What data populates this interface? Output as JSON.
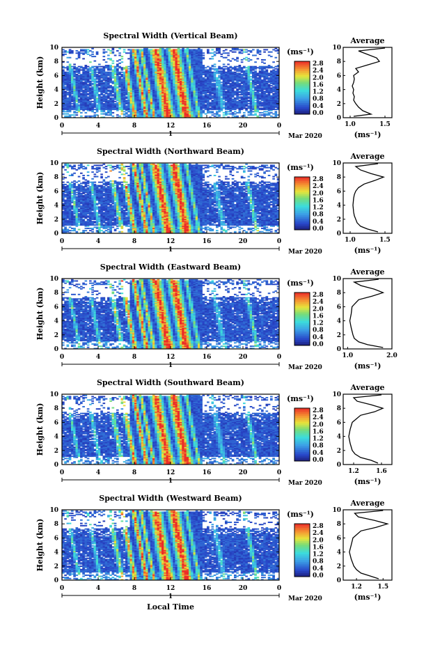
{
  "chart_data": [
    {
      "type": "heatmap",
      "title": "Spectral Width (Vertical Beam)",
      "ylabel": "Height (km)",
      "y_ticks": [
        "0",
        "2",
        "4",
        "6",
        "8",
        "10"
      ],
      "x_ticks": [
        "0",
        "4",
        "8",
        "12",
        "16",
        "20",
        "0"
      ],
      "date_center": "1",
      "date_suffix": "Mar 2020",
      "unit": "(ms⁻¹)",
      "cbar_ticks": [
        "0.0",
        "0.4",
        "0.8",
        "1.2",
        "1.6",
        "2.0",
        "2.4",
        "2.8"
      ],
      "xlim": [
        0,
        24
      ],
      "ylim": [
        0,
        10
      ],
      "clim": [
        0,
        2.8
      ],
      "avg": {
        "title": "Average",
        "xlabel": "(ms⁻¹)",
        "x_ticks": [
          "1.0",
          "1.5"
        ],
        "xlim": [
          0.9,
          1.6
        ],
        "profile": [
          [
            1.05,
            0.2
          ],
          [
            1.3,
            0.5
          ],
          [
            1.18,
            1
          ],
          [
            1.12,
            1.5
          ],
          [
            1.08,
            2
          ],
          [
            1.05,
            2.5
          ],
          [
            1.06,
            3
          ],
          [
            1.04,
            3.5
          ],
          [
            1.05,
            4
          ],
          [
            1.03,
            4.5
          ],
          [
            1.05,
            5
          ],
          [
            1.06,
            5.5
          ],
          [
            1.05,
            6
          ],
          [
            1.12,
            6.5
          ],
          [
            1.08,
            7
          ],
          [
            1.25,
            7.5
          ],
          [
            1.42,
            8
          ],
          [
            1.38,
            8.5
          ],
          [
            1.25,
            9
          ],
          [
            1.12,
            9.5
          ],
          [
            1.5,
            9.9
          ]
        ]
      }
    },
    {
      "type": "heatmap",
      "title": "Spectral Width (Northward Beam)",
      "ylabel": "Height (km)",
      "y_ticks": [
        "0",
        "2",
        "4",
        "6",
        "8",
        "10"
      ],
      "x_ticks": [
        "0",
        "4",
        "8",
        "12",
        "16",
        "20",
        "0"
      ],
      "date_center": "1",
      "date_suffix": "Mar 2020",
      "unit": "(ms⁻¹)",
      "cbar_ticks": [
        "0.0",
        "0.4",
        "0.8",
        "1.2",
        "1.6",
        "2.0",
        "2.4",
        "2.8"
      ],
      "xlim": [
        0,
        24
      ],
      "ylim": [
        0,
        10
      ],
      "clim": [
        0,
        2.8
      ],
      "avg": {
        "title": "Average",
        "xlabel": "(ms⁻¹)",
        "x_ticks": [
          "1.0",
          "1.5"
        ],
        "xlim": [
          0.9,
          1.6
        ],
        "profile": [
          [
            1.4,
            0.2
          ],
          [
            1.25,
            0.6
          ],
          [
            1.15,
            1
          ],
          [
            1.1,
            1.5
          ],
          [
            1.08,
            2
          ],
          [
            1.06,
            2.5
          ],
          [
            1.05,
            3
          ],
          [
            1.04,
            4
          ],
          [
            1.05,
            5
          ],
          [
            1.06,
            5.5
          ],
          [
            1.08,
            6
          ],
          [
            1.12,
            6.5
          ],
          [
            1.2,
            7
          ],
          [
            1.35,
            7.5
          ],
          [
            1.48,
            8
          ],
          [
            1.3,
            8.5
          ],
          [
            1.15,
            9
          ],
          [
            1.08,
            9.5
          ],
          [
            1.4,
            9.9
          ]
        ]
      }
    },
    {
      "type": "heatmap",
      "title": "Spectral Width (Eastward Beam)",
      "ylabel": "Height (km)",
      "y_ticks": [
        "0",
        "2",
        "4",
        "6",
        "8",
        "10"
      ],
      "x_ticks": [
        "0",
        "4",
        "8",
        "12",
        "16",
        "20",
        "0"
      ],
      "date_center": "1",
      "date_suffix": "Mar 2020",
      "unit": "(ms⁻¹)",
      "cbar_ticks": [
        "0.0",
        "0.4",
        "0.8",
        "1.2",
        "1.6",
        "2.0",
        "2.4",
        "2.8"
      ],
      "xlim": [
        0,
        24
      ],
      "ylim": [
        0,
        10
      ],
      "clim": [
        0,
        2.8
      ],
      "avg": {
        "title": "Average",
        "xlabel": "(ms⁻¹)",
        "x_ticks": [
          "1.0",
          "2.0"
        ],
        "xlim": [
          0.9,
          2.0
        ],
        "profile": [
          [
            1.8,
            0.2
          ],
          [
            1.45,
            0.6
          ],
          [
            1.25,
            1
          ],
          [
            1.15,
            1.5
          ],
          [
            1.12,
            2
          ],
          [
            1.08,
            3
          ],
          [
            1.05,
            4
          ],
          [
            1.08,
            5
          ],
          [
            1.1,
            6
          ],
          [
            1.25,
            7
          ],
          [
            1.55,
            7.5
          ],
          [
            1.8,
            8
          ],
          [
            1.6,
            8.5
          ],
          [
            1.3,
            9
          ],
          [
            1.15,
            9.5
          ],
          [
            1.7,
            9.9
          ]
        ]
      }
    },
    {
      "type": "heatmap",
      "title": "Spectral Width (Southward Beam)",
      "ylabel": "Height (km)",
      "y_ticks": [
        "0",
        "2",
        "4",
        "6",
        "8",
        "10"
      ],
      "x_ticks": [
        "0",
        "4",
        "8",
        "12",
        "16",
        "20",
        "0"
      ],
      "date_center": "1",
      "date_suffix": "Mar 2020",
      "unit": "(ms⁻¹)",
      "cbar_ticks": [
        "0.0",
        "0.4",
        "0.8",
        "1.2",
        "1.6",
        "2.0",
        "2.4",
        "2.8"
      ],
      "xlim": [
        0,
        24
      ],
      "ylim": [
        0,
        10
      ],
      "clim": [
        0,
        2.8
      ],
      "avg": {
        "title": "Average",
        "xlabel": "(ms⁻¹)",
        "x_ticks": [
          "1.2",
          "1.6"
        ],
        "xlim": [
          1.05,
          1.75
        ],
        "profile": [
          [
            1.55,
            0.2
          ],
          [
            1.45,
            0.6
          ],
          [
            1.3,
            1
          ],
          [
            1.22,
            1.5
          ],
          [
            1.18,
            2
          ],
          [
            1.15,
            3
          ],
          [
            1.13,
            4
          ],
          [
            1.15,
            5
          ],
          [
            1.18,
            6
          ],
          [
            1.3,
            7
          ],
          [
            1.5,
            7.5
          ],
          [
            1.62,
            8
          ],
          [
            1.45,
            8.5
          ],
          [
            1.25,
            9
          ],
          [
            1.2,
            9.5
          ],
          [
            1.6,
            9.9
          ]
        ]
      }
    },
    {
      "type": "heatmap",
      "title": "Spectral Width (Westward Beam)",
      "ylabel": "Height (km)",
      "y_ticks": [
        "0",
        "2",
        "4",
        "6",
        "8",
        "10"
      ],
      "x_ticks": [
        "0",
        "4",
        "8",
        "12",
        "16",
        "20",
        "0"
      ],
      "date_center": "1",
      "date_suffix": "Mar 2020",
      "unit": "(ms⁻¹)",
      "cbar_ticks": [
        "0.0",
        "0.4",
        "0.8",
        "1.2",
        "1.6",
        "2.0",
        "2.4",
        "2.8"
      ],
      "xlim": [
        0,
        24
      ],
      "ylim": [
        0,
        10
      ],
      "clim": [
        0,
        2.8
      ],
      "xlabel": "Local Time",
      "avg": {
        "title": "Average",
        "xlabel": "(ms⁻¹)",
        "x_ticks": [
          "1.2",
          "1.5"
        ],
        "xlim": [
          1.05,
          1.6
        ],
        "profile": [
          [
            1.45,
            0.2
          ],
          [
            1.35,
            0.6
          ],
          [
            1.25,
            1
          ],
          [
            1.2,
            1.5
          ],
          [
            1.17,
            2
          ],
          [
            1.14,
            3
          ],
          [
            1.12,
            4
          ],
          [
            1.14,
            5
          ],
          [
            1.16,
            6
          ],
          [
            1.25,
            7
          ],
          [
            1.42,
            7.5
          ],
          [
            1.55,
            8
          ],
          [
            1.4,
            8.5
          ],
          [
            1.22,
            9
          ],
          [
            1.18,
            9.5
          ],
          [
            1.5,
            9.9
          ]
        ]
      }
    }
  ]
}
